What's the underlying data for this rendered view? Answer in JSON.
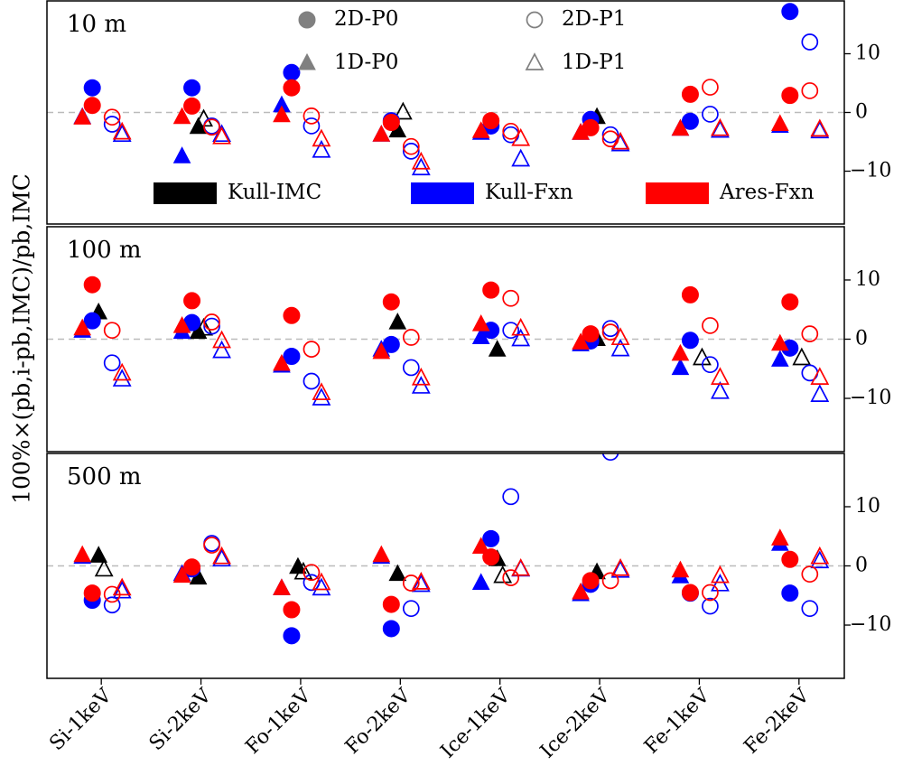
{
  "chart_data": [
    {
      "type": "scatter",
      "title": "10 m",
      "ylabel": "100%×(pb,i-pb,IMC)/pb,IMC",
      "categories": [
        "Si-1keV",
        "Si-2keV",
        "Fo-1keV",
        "Fo-2keV",
        "Ice-1keV",
        "Ice-2keV",
        "Fe-1keV",
        "Fe-2keV"
      ],
      "ylim": [
        -19,
        19
      ],
      "yticks": [
        {
          "value": 10,
          "label": "10"
        },
        0,
        {
          "value": -10,
          "label": "−10"
        }
      ],
      "hline": 0,
      "legend": {
        "markers": [
          {
            "name": "2D-P0",
            "marker": "circle",
            "filled": true,
            "color": "#808080"
          },
          {
            "name": "2D-P1",
            "marker": "circle",
            "filled": false,
            "color": "#808080"
          },
          {
            "name": "1D-P0",
            "marker": "triangle",
            "filled": true,
            "color": "#808080"
          },
          {
            "name": "1D-P1",
            "marker": "triangle",
            "filled": false,
            "color": "#808080"
          }
        ],
        "colors": [
          {
            "name": "Kull-IMC",
            "color": "#000000"
          },
          {
            "name": "Kull-Fxn",
            "color": "#0000ff"
          },
          {
            "name": "Ares-Fxn",
            "color": "#ff0000"
          }
        ]
      },
      "series": [
        {
          "code": "Kull-IMC",
          "method": "1D-P0",
          "values": [
            null,
            -2.5,
            null,
            -3.1,
            null,
            -0.8,
            null,
            null
          ]
        },
        {
          "code": "Kull-IMC",
          "method": "1D-P1",
          "values": [
            null,
            -1.2,
            null,
            0,
            null,
            null,
            null,
            null
          ]
        },
        {
          "code": "Kull-Fxn",
          "method": "2D-P0",
          "values": [
            4.2,
            4.2,
            6.8,
            -1.4,
            -2.3,
            -1.2,
            -1.5,
            17.2
          ]
        },
        {
          "code": "Kull-Fxn",
          "method": "2D-P1",
          "values": [
            -2,
            -2.3,
            -2.3,
            -6.6,
            -3.8,
            -3.8,
            -0.3,
            12
          ]
        },
        {
          "code": "Kull-Fxn",
          "method": "1D-P0",
          "values": [
            -0.8,
            -7.5,
            1.2,
            -3.8,
            -3.5,
            -3.5,
            -2.8,
            -2.3
          ]
        },
        {
          "code": "Kull-Fxn",
          "method": "1D-P1",
          "values": [
            -3.8,
            -3.8,
            -6.5,
            -9.5,
            -8,
            -5.4,
            -3.1,
            -3.2
          ]
        },
        {
          "code": "Ares-Fxn",
          "method": "2D-P0",
          "values": [
            1.2,
            1.1,
            4.2,
            -1.7,
            -1.4,
            -2.6,
            3.1,
            2.9
          ]
        },
        {
          "code": "Ares-Fxn",
          "method": "2D-P1",
          "values": [
            -0.8,
            -2.5,
            -0.6,
            -5.8,
            -3.2,
            -4.5,
            4.3,
            3.7
          ]
        },
        {
          "code": "Ares-Fxn",
          "method": "1D-P0",
          "values": [
            -0.9,
            -0.8,
            -0.5,
            -3.8,
            -3.2,
            -3.5,
            -2.8,
            -2
          ]
        },
        {
          "code": "Ares-Fxn",
          "method": "1D-P1",
          "values": [
            -3.4,
            -4.2,
            -4.6,
            -8.5,
            -4.5,
            -5.1,
            -2.8,
            -2.9
          ]
        }
      ]
    },
    {
      "type": "scatter",
      "title": "100 m",
      "categories": [
        "Si-1keV",
        "Si-2keV",
        "Fo-1keV",
        "Fo-2keV",
        "Ice-1keV",
        "Ice-2keV",
        "Fe-1keV",
        "Fe-2keV"
      ],
      "ylim": [
        -19,
        19
      ],
      "yticks": [
        {
          "value": 10,
          "label": "10"
        },
        0,
        {
          "value": -10,
          "label": "−10"
        }
      ],
      "hline": 0,
      "series": [
        {
          "code": "Kull-IMC",
          "method": "1D-P0",
          "values": [
            4.5,
            1.2,
            null,
            2.8,
            -1.8,
            0,
            null,
            null
          ]
        },
        {
          "code": "Kull-IMC",
          "method": "1D-P1",
          "values": [
            null,
            1.8,
            null,
            null,
            null,
            null,
            -3.2,
            -3.2
          ]
        },
        {
          "code": "Kull-Fxn",
          "method": "2D-P0",
          "values": [
            3.1,
            2.8,
            -2.9,
            -0.9,
            1.5,
            -0.3,
            -0.2,
            -1.5
          ]
        },
        {
          "code": "Kull-Fxn",
          "method": "2D-P1",
          "values": [
            -4,
            2.2,
            -7.1,
            -4.8,
            1.5,
            1.8,
            -4.3,
            -5.7
          ]
        },
        {
          "code": "Kull-Fxn",
          "method": "1D-P0",
          "values": [
            1.4,
            1.2,
            -4.5,
            -1.8,
            0.3,
            -0.9,
            -4.9,
            -3.5
          ]
        },
        {
          "code": "Kull-Fxn",
          "method": "1D-P1",
          "values": [
            -6.8,
            -2,
            -10,
            -8,
            0,
            -1.7,
            -8.9,
            -9.4
          ]
        },
        {
          "code": "Ares-Fxn",
          "method": "2D-P0",
          "values": [
            9.2,
            6.5,
            4,
            6.3,
            8.3,
            0.9,
            7.5,
            6.3
          ]
        },
        {
          "code": "Ares-Fxn",
          "method": "2D-P1",
          "values": [
            1.5,
            2.9,
            -1.7,
            0.3,
            6.9,
            1.2,
            2.3,
            0.9
          ]
        },
        {
          "code": "Ares-Fxn",
          "method": "1D-P0",
          "values": [
            1.8,
            2.2,
            -4.2,
            -2.2,
            2.5,
            -0.6,
            -2.5,
            -0.8
          ]
        },
        {
          "code": "Ares-Fxn",
          "method": "1D-P1",
          "values": [
            -5.8,
            -0.3,
            -9.1,
            -6.6,
            1.8,
            0.2,
            -6.5,
            -6.5
          ]
        }
      ]
    },
    {
      "type": "scatter",
      "title": "500 m",
      "categories": [
        "Si-1keV",
        "Si-2keV",
        "Fo-1keV",
        "Fo-2keV",
        "Ice-1keV",
        "Ice-2keV",
        "Fe-1keV",
        "Fe-2keV"
      ],
      "ylim": [
        -19,
        19
      ],
      "yticks": [
        {
          "value": 10,
          "label": "10"
        },
        0,
        {
          "value": -10,
          "label": "−10"
        }
      ],
      "hline": 0,
      "series": [
        {
          "code": "Kull-IMC",
          "method": "1D-P0",
          "values": [
            1.7,
            -2,
            -0.2,
            -1.4,
            1.1,
            -1.1,
            null,
            null
          ]
        },
        {
          "code": "Kull-IMC",
          "method": "1D-P1",
          "values": [
            -0.6,
            null,
            -1.1,
            null,
            -1.7,
            null,
            null,
            null
          ]
        },
        {
          "code": "Kull-Fxn",
          "method": "2D-P0",
          "values": [
            -5.8,
            -0.5,
            -11.8,
            -10.6,
            4.6,
            -3.1,
            -4.6,
            -4.6
          ]
        },
        {
          "code": "Kull-Fxn",
          "method": "2D-P1",
          "values": [
            -6.6,
            3.8,
            -2.8,
            -7.2,
            11.7,
            19.2,
            -6.8,
            -7.2
          ]
        },
        {
          "code": "Kull-Fxn",
          "method": "1D-P0",
          "values": [
            1.5,
            -1.4,
            -3.8,
            1.5,
            -2.9,
            -4.8,
            -1.8,
            3.7
          ]
        },
        {
          "code": "Kull-Fxn",
          "method": "1D-P1",
          "values": [
            -4.3,
            1.1,
            -3.8,
            -3.2,
            -0.6,
            -0.8,
            -3.1,
            0.8
          ]
        },
        {
          "code": "Ares-Fxn",
          "method": "2D-P0",
          "values": [
            -4.6,
            -0.2,
            -7.4,
            -6.5,
            1.5,
            -2.5,
            -4.5,
            1.1
          ]
        },
        {
          "code": "Ares-Fxn",
          "method": "2D-P1",
          "values": [
            -4.8,
            3.5,
            -1.1,
            -2.9,
            -2,
            -2.5,
            -4.5,
            -1.4
          ]
        },
        {
          "code": "Ares-Fxn",
          "method": "1D-P0",
          "values": [
            1.8,
            -1.7,
            -3.8,
            1.8,
            3.2,
            -4.5,
            -0.8,
            4.6
          ]
        },
        {
          "code": "Ares-Fxn",
          "method": "1D-P1",
          "values": [
            -3.8,
            1.5,
            -2.9,
            -2.8,
            -0.5,
            -0.5,
            -1.7,
            1.5
          ]
        }
      ]
    }
  ]
}
